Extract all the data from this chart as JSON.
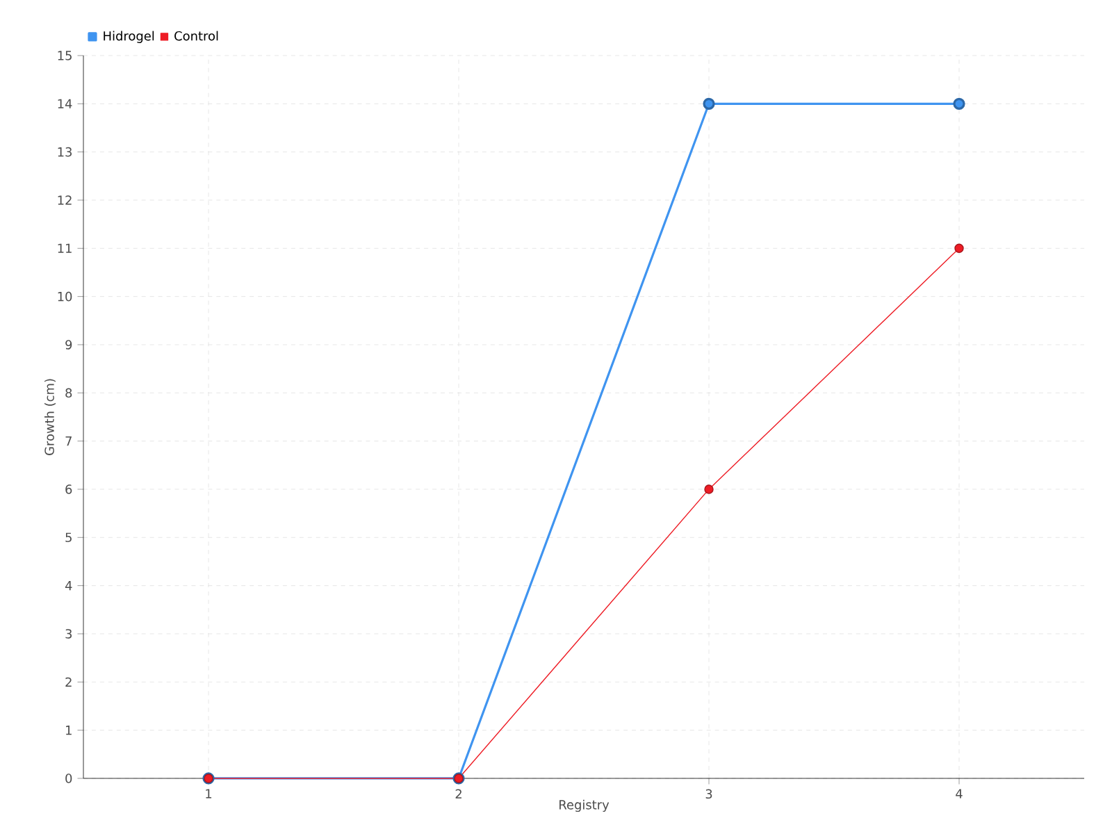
{
  "chart_data": {
    "type": "line",
    "xlabel": "Registry",
    "ylabel": "Growth (cm)",
    "x": [
      1,
      2,
      3,
      4
    ],
    "xlim": [
      0.5,
      4.5
    ],
    "xticks": [
      1,
      2,
      3,
      4
    ],
    "ylim": [
      0,
      15
    ],
    "yticks": [
      0,
      1,
      2,
      3,
      4,
      5,
      6,
      7,
      8,
      9,
      10,
      11,
      12,
      13,
      14,
      15
    ],
    "series": [
      {
        "name": "Hidrogel",
        "color": "#3f94f0",
        "values": [
          0,
          0,
          14,
          14
        ]
      },
      {
        "name": "Control",
        "color": "#ee1c25",
        "values": [
          0,
          0,
          6,
          11
        ]
      }
    ],
    "grid": true,
    "legend": "top left",
    "marker": "circle",
    "line_style": "solid"
  }
}
